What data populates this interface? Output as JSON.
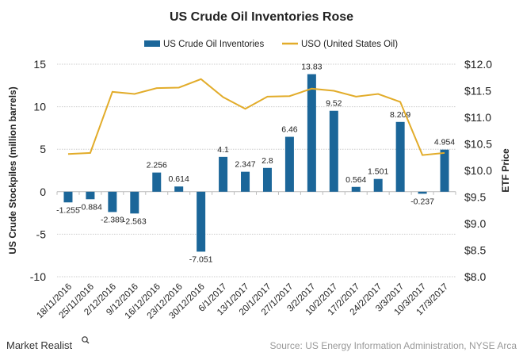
{
  "chart_data": {
    "type": "bar+line",
    "title": "US Crude Oil Inventories Rose",
    "ylabel": "US Crude Stockpiles (million barrels)",
    "y2label": "ETF Price",
    "ylim": [
      -10,
      15
    ],
    "yticks": [
      "15",
      "10",
      "5",
      "0",
      "-5",
      "-10"
    ],
    "y2lim": [
      8.0,
      12.0
    ],
    "y2ticks": [
      "$12.0",
      "$11.5",
      "$11.0",
      "$10.5",
      "$10.0",
      "$9.5",
      "$9.0",
      "$8.5",
      "$8.0"
    ],
    "grid": true,
    "legend_position": "top",
    "categories": [
      "18/11/2016",
      "25/11/2016",
      "2/12/2016",
      "9/12/2016",
      "16/12/2016",
      "23/12/2016",
      "30/12/2016",
      "6/1/2017",
      "13/1/2017",
      "20/1/2017",
      "27/1/2017",
      "3/2/2017",
      "10/2/2017",
      "17/2/2017",
      "24/2/2017",
      "3/3/2017",
      "10/3/2017",
      "17/3/2017"
    ],
    "series": [
      {
        "name": "US Crude Oil Inventories",
        "type": "bar",
        "axis": "left",
        "color": "#1b6699",
        "values": [
          -1.255,
          -0.884,
          -2.389,
          -2.563,
          2.256,
          0.614,
          -7.051,
          4.1,
          2.347,
          2.8,
          6.46,
          13.83,
          9.52,
          0.564,
          1.501,
          8.209,
          -0.237,
          4.954
        ],
        "labels": [
          "-1.255",
          "-0.884",
          "-2.389",
          "-2.563",
          "2.256",
          "0.614",
          "-7.051",
          "4.1",
          "2.347",
          "2.8",
          "6.46",
          "13.83",
          "9.52",
          "0.564",
          "1.501",
          "8.209",
          "-0.237",
          "4.954"
        ]
      },
      {
        "name": "USO (United States Oil)",
        "type": "line",
        "axis": "right",
        "color": "#e2ac2a",
        "values": [
          10.31,
          10.33,
          11.48,
          11.44,
          11.55,
          11.56,
          11.72,
          11.38,
          11.16,
          11.39,
          11.4,
          11.54,
          11.5,
          11.39,
          11.44,
          11.29,
          10.29,
          10.33
        ]
      }
    ]
  },
  "footer": {
    "logo": "Market Realist",
    "source": "Source: US Energy Information Administration, NYSE Arca"
  }
}
